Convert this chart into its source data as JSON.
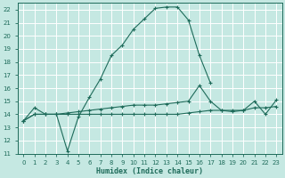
{
  "xlabel": "Humidex (Indice chaleur)",
  "bg_color": "#c5e8e2",
  "grid_color": "#b0d8d0",
  "line_color": "#1e6b5a",
  "xlim": [
    -0.5,
    23.5
  ],
  "ylim": [
    11,
    22.5
  ],
  "xticks": [
    0,
    1,
    2,
    3,
    4,
    5,
    6,
    7,
    8,
    9,
    10,
    11,
    12,
    13,
    14,
    15,
    16,
    17,
    18,
    19,
    20,
    21,
    22,
    23
  ],
  "yticks": [
    11,
    12,
    13,
    14,
    15,
    16,
    17,
    18,
    19,
    20,
    21,
    22
  ],
  "line1_x": [
    0,
    1,
    2,
    3,
    4,
    5,
    6,
    7,
    8,
    9,
    10,
    11,
    12,
    13,
    14,
    15,
    16,
    17
  ],
  "line1_y": [
    13.5,
    14.5,
    14.0,
    14.0,
    11.2,
    13.8,
    15.3,
    16.7,
    18.5,
    19.3,
    20.5,
    21.3,
    22.1,
    22.2,
    22.2,
    21.2,
    18.5,
    16.4
  ],
  "line2_x": [
    0,
    1,
    2,
    3,
    4,
    5,
    6,
    7,
    8,
    9,
    10,
    11,
    12,
    13,
    14,
    15,
    16,
    17,
    18,
    19,
    20,
    21,
    22,
    23
  ],
  "line2_y": [
    13.5,
    14.0,
    14.0,
    14.0,
    14.1,
    14.2,
    14.3,
    14.4,
    14.5,
    14.6,
    14.7,
    14.7,
    14.7,
    14.8,
    14.9,
    15.0,
    16.2,
    15.0,
    14.3,
    14.2,
    14.3,
    15.0,
    14.0,
    15.1
  ],
  "line3_x": [
    0,
    1,
    2,
    3,
    4,
    5,
    6,
    7,
    8,
    9,
    10,
    11,
    12,
    13,
    14,
    15,
    16,
    17,
    18,
    19,
    20,
    21,
    22,
    23
  ],
  "line3_y": [
    13.5,
    14.0,
    14.0,
    14.0,
    14.0,
    14.0,
    14.0,
    14.0,
    14.0,
    14.0,
    14.0,
    14.0,
    14.0,
    14.0,
    14.0,
    14.1,
    14.2,
    14.3,
    14.3,
    14.3,
    14.3,
    14.5,
    14.5,
    14.6
  ]
}
